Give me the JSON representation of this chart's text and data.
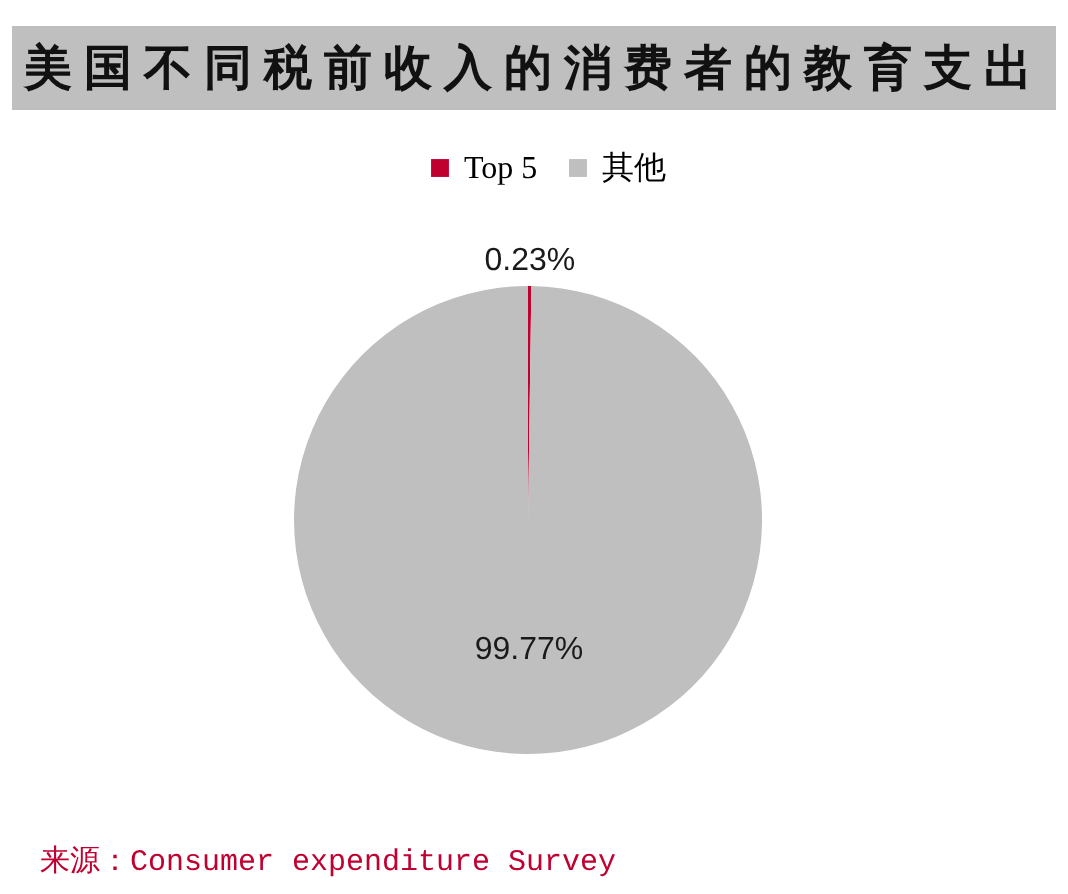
{
  "chart_data": {
    "type": "pie",
    "title": "美国不同税前收入的消费者的教育支出",
    "categories": [
      "Top 5",
      "其他"
    ],
    "values": [
      0.23,
      99.77
    ],
    "colors": [
      "#c0002f",
      "#bfbfbf"
    ],
    "value_labels": [
      "0.23%",
      "99.77%"
    ],
    "legend": "top",
    "annotations": [
      "来源：Consumer expenditure Survey"
    ]
  }
}
